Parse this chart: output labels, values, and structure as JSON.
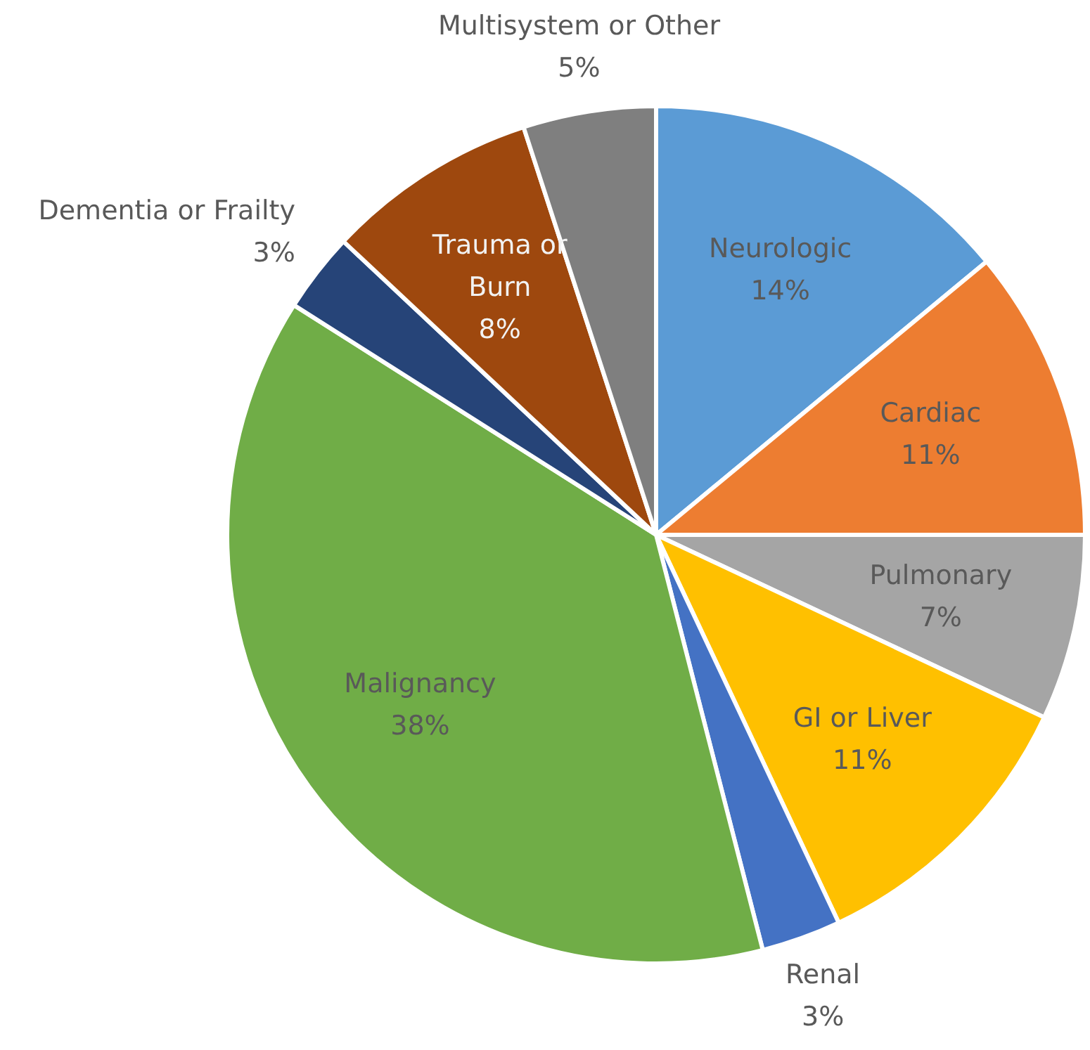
{
  "chart_data": {
    "type": "pie",
    "categories": [
      "Neurologic",
      "Cardiac",
      "Pulmonary",
      "GI or Liver",
      "Renal",
      "Malignancy",
      "Dementia or Frailty",
      "Trauma or Burn",
      "Multisystem or Other"
    ],
    "values": [
      14,
      11,
      7,
      11,
      3,
      38,
      3,
      8,
      5
    ],
    "colors": [
      "#5b9bd5",
      "#ed7d31",
      "#a5a5a5",
      "#ffc000",
      "#4472c4",
      "#70ad47",
      "#264478",
      "#9e480e",
      "#7f7f7f"
    ],
    "value_labels": [
      "14%",
      "11%",
      "7%",
      "11%",
      "3%",
      "38%",
      "3%",
      "8%",
      "5%"
    ],
    "legend": false
  }
}
